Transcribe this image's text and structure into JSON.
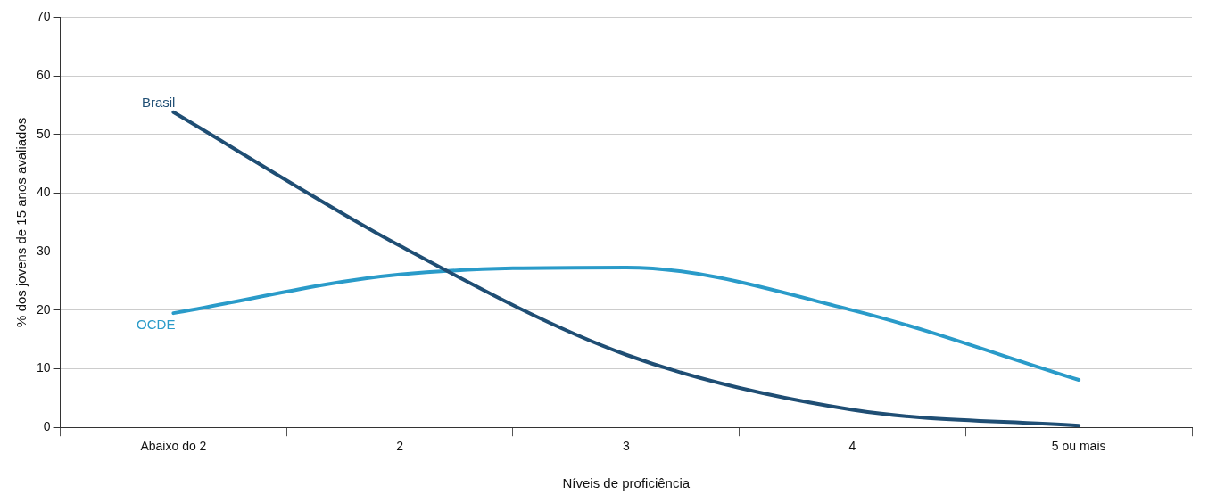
{
  "chart_data": {
    "type": "line",
    "xlabel": "Níveis de proficiência",
    "ylabel": "% dos jovens de 15 anos avaliados",
    "categories": [
      "Abaixo do 2",
      "2",
      "3",
      "4",
      "5 ou mais"
    ],
    "series": [
      {
        "name": "Brasil",
        "color": "#1f4e74",
        "values": [
          53.8,
          31,
          12.4,
          3,
          0.3
        ]
      },
      {
        "name": "OCDE",
        "color": "#2a9bc9",
        "values": [
          19.5,
          26.1,
          27.3,
          20,
          8.1
        ]
      }
    ],
    "ylim": [
      0,
      70
    ],
    "yticks": [
      0,
      10,
      20,
      30,
      40,
      50,
      60,
      70
    ],
    "grid": "y",
    "legend": false,
    "marker": "none",
    "line_style": "solid"
  }
}
